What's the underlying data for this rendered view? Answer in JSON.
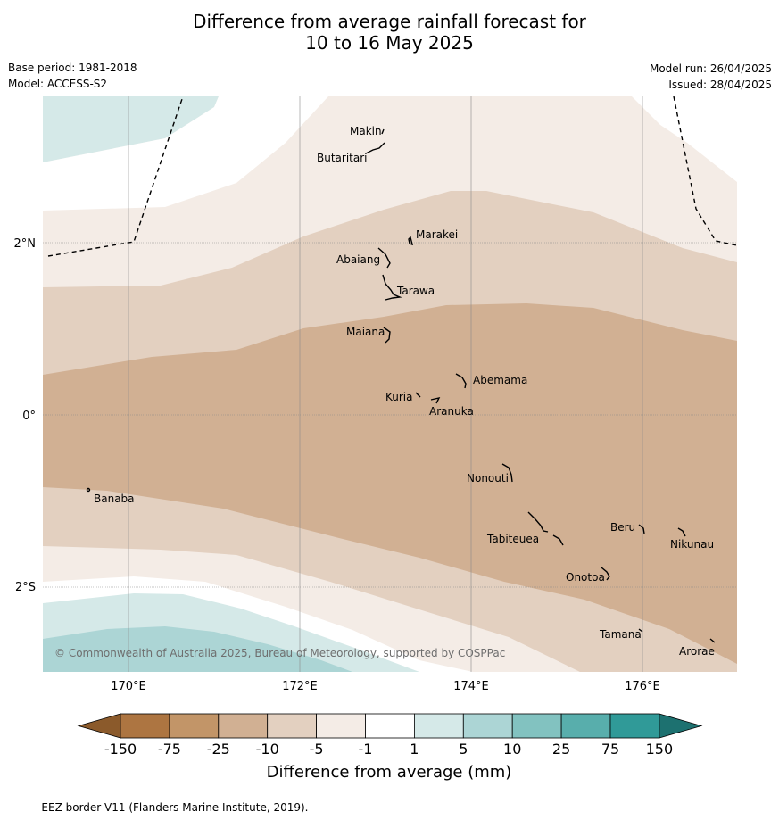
{
  "title_line1": "Difference from average rainfall forecast for",
  "title_line2": "10 to 16 May 2025",
  "base_period": "Base period: 1981-2018",
  "model": "Model: ACCESS-S2",
  "model_run": "Model run: 26/04/2025",
  "issued": "Issued: 28/04/2025",
  "copyright": "© Commonwealth of Australia 2025, Bureau of Meteorology, supported by COSPPac",
  "lat_labels": [
    "2°N",
    "0°",
    "2°S"
  ],
  "lon_labels": [
    "170°E",
    "172°E",
    "174°E",
    "176°E"
  ],
  "islands": [
    "Makin",
    "Butaritari",
    "Marakei",
    "Abaiang",
    "Tarawa",
    "Maiana",
    "Abemama",
    "Kuria",
    "Aranuka",
    "Nonouti",
    "Banaba",
    "Beru",
    "Nikunau",
    "Tabiteuea",
    "Onotoa",
    "Tamana",
    "Arorae"
  ],
  "legend": {
    "title": "Difference from average (mm)",
    "ticks": [
      "-150",
      "-75",
      "-25",
      "-10",
      "-5",
      "-1",
      "1",
      "5",
      "10",
      "25",
      "75",
      "150"
    ],
    "colors": [
      "#8b5a2b",
      "#ad7541",
      "#c29568",
      "#d1b093",
      "#e3d0c0",
      "#f4ece6",
      "#ffffff",
      "#d5e9e8",
      "#acd5d5",
      "#82c2c0",
      "#58aeac",
      "#309a98",
      "#1d7170"
    ]
  },
  "footer": "--  --  -- EEZ border V11 (Flanders Marine Institute, 2019)."
}
